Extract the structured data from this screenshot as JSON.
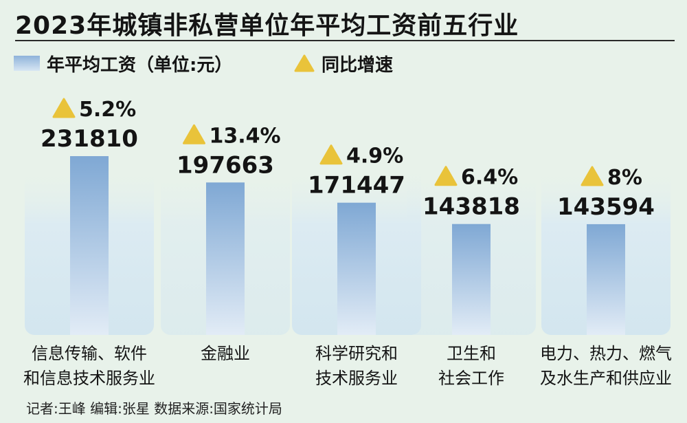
{
  "title": "2023年城镇非私营单位年平均工资前五行业",
  "legend": {
    "bar_label": "年平均工资（单位:元）",
    "growth_label": "同比增速"
  },
  "colors": {
    "background": "#e8f2ea",
    "bar_top": "#7fa8d4",
    "bar_bottom": "#e2ecf6",
    "panel": "#d6e8f0",
    "triangle": "#e9c33a"
  },
  "chart_data": {
    "type": "bar",
    "title": "2023年城镇非私营单位年平均工资前五行业",
    "categories": [
      [
        "信息传输、软件",
        "和信息技术服务业"
      ],
      [
        "金融业"
      ],
      [
        "科学研究和",
        "技术服务业"
      ],
      [
        "卫生和",
        "社会工作"
      ],
      [
        "电力、热力、燃气",
        "及水生产和供应业"
      ]
    ],
    "series": [
      {
        "name": "年平均工资（单位:元）",
        "values": [
          231810,
          197663,
          171447,
          143818,
          143594
        ]
      },
      {
        "name": "同比增速",
        "values": [
          "5.2%",
          "13.4%",
          "4.9%",
          "6.4%",
          "8%"
        ]
      }
    ],
    "ylim": [
      0,
      247000
    ]
  },
  "footer": "记者:王峰  编辑:张星  数据来源:国家统计局"
}
